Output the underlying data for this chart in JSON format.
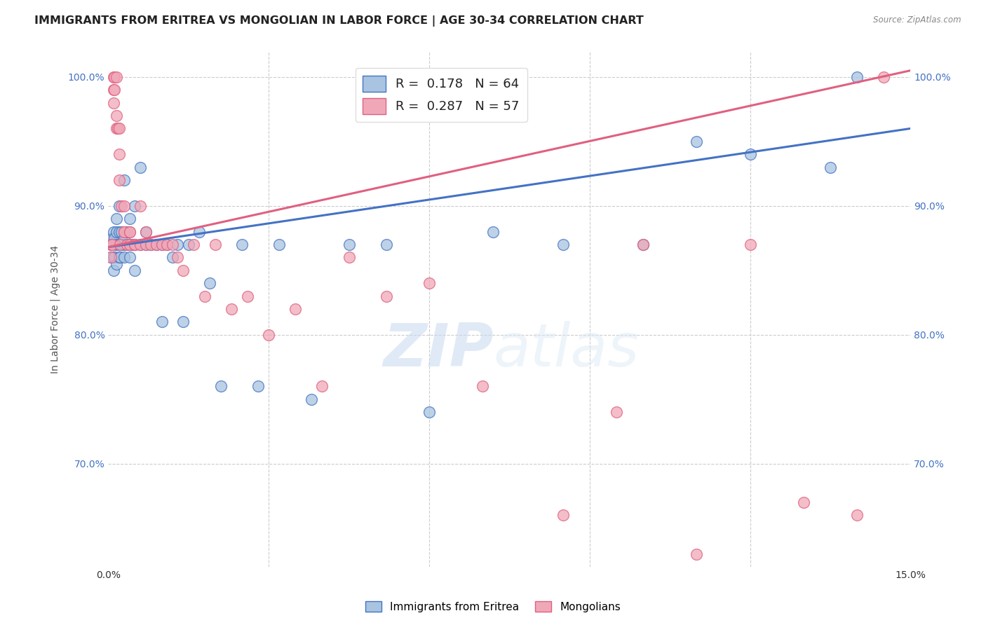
{
  "title": "IMMIGRANTS FROM ERITREA VS MONGOLIAN IN LABOR FORCE | AGE 30-34 CORRELATION CHART",
  "source": "Source: ZipAtlas.com",
  "ylabel": "In Labor Force | Age 30-34",
  "xlim": [
    0.0,
    0.15
  ],
  "ylim": [
    0.62,
    1.02
  ],
  "yticks": [
    0.7,
    0.8,
    0.9,
    1.0
  ],
  "yticklabels": [
    "70.0%",
    "80.0%",
    "90.0%",
    "100.0%"
  ],
  "blue_R": 0.178,
  "blue_N": 64,
  "pink_R": 0.287,
  "pink_N": 57,
  "blue_color": "#a8c4e0",
  "pink_color": "#f0a8b8",
  "blue_line_color": "#4472c4",
  "pink_line_color": "#e06080",
  "legend_label_blue": "Immigrants from Eritrea",
  "legend_label_pink": "Mongolians",
  "watermark_zip": "ZIP",
  "watermark_atlas": "atlas",
  "title_fontsize": 11.5,
  "axis_label_fontsize": 10,
  "tick_fontsize": 10,
  "blue_trend_x": [
    0.0,
    0.15
  ],
  "blue_trend_y": [
    0.868,
    0.96
  ],
  "pink_trend_x": [
    0.0,
    0.15
  ],
  "pink_trend_y": [
    0.868,
    1.005
  ],
  "blue_x": [
    0.0005,
    0.0005,
    0.0008,
    0.001,
    0.001,
    0.001,
    0.001,
    0.0012,
    0.0012,
    0.0015,
    0.0015,
    0.0015,
    0.0015,
    0.002,
    0.002,
    0.002,
    0.002,
    0.002,
    0.0022,
    0.0025,
    0.0025,
    0.003,
    0.003,
    0.003,
    0.003,
    0.0035,
    0.0035,
    0.004,
    0.004,
    0.004,
    0.0045,
    0.005,
    0.005,
    0.005,
    0.006,
    0.006,
    0.007,
    0.007,
    0.008,
    0.009,
    0.01,
    0.01,
    0.011,
    0.012,
    0.013,
    0.014,
    0.015,
    0.017,
    0.019,
    0.021,
    0.025,
    0.028,
    0.032,
    0.038,
    0.045,
    0.052,
    0.06,
    0.072,
    0.085,
    0.1,
    0.11,
    0.12,
    0.135,
    0.14
  ],
  "blue_y": [
    0.87,
    0.86,
    0.875,
    0.88,
    0.85,
    0.86,
    0.87,
    0.875,
    0.86,
    0.89,
    0.87,
    0.855,
    0.88,
    0.9,
    0.87,
    0.86,
    0.88,
    0.87,
    0.86,
    0.87,
    0.88,
    0.92,
    0.87,
    0.86,
    0.875,
    0.88,
    0.87,
    0.89,
    0.87,
    0.86,
    0.87,
    0.9,
    0.87,
    0.85,
    0.93,
    0.87,
    0.87,
    0.88,
    0.87,
    0.87,
    0.87,
    0.81,
    0.87,
    0.86,
    0.87,
    0.81,
    0.87,
    0.88,
    0.84,
    0.76,
    0.87,
    0.76,
    0.87,
    0.75,
    0.87,
    0.87,
    0.74,
    0.88,
    0.87,
    0.87,
    0.95,
    0.94,
    0.93,
    1.0
  ],
  "pink_x": [
    0.0005,
    0.0005,
    0.0008,
    0.001,
    0.001,
    0.001,
    0.0012,
    0.0012,
    0.0015,
    0.0015,
    0.0015,
    0.0018,
    0.002,
    0.002,
    0.002,
    0.0022,
    0.0025,
    0.003,
    0.003,
    0.003,
    0.0035,
    0.004,
    0.004,
    0.004,
    0.005,
    0.005,
    0.006,
    0.006,
    0.007,
    0.007,
    0.008,
    0.009,
    0.01,
    0.011,
    0.012,
    0.013,
    0.014,
    0.016,
    0.018,
    0.02,
    0.023,
    0.026,
    0.03,
    0.035,
    0.04,
    0.045,
    0.052,
    0.06,
    0.07,
    0.085,
    0.095,
    0.1,
    0.11,
    0.12,
    0.13,
    0.14,
    0.145
  ],
  "pink_y": [
    0.87,
    0.86,
    0.87,
    1.0,
    0.99,
    0.98,
    1.0,
    0.99,
    1.0,
    0.97,
    0.96,
    0.96,
    0.96,
    0.94,
    0.92,
    0.87,
    0.9,
    0.9,
    0.88,
    0.88,
    0.87,
    0.87,
    0.88,
    0.88,
    0.87,
    0.87,
    0.9,
    0.87,
    0.87,
    0.88,
    0.87,
    0.87,
    0.87,
    0.87,
    0.87,
    0.86,
    0.85,
    0.87,
    0.83,
    0.87,
    0.82,
    0.83,
    0.8,
    0.82,
    0.76,
    0.86,
    0.83,
    0.84,
    0.76,
    0.66,
    0.74,
    0.87,
    0.63,
    0.87,
    0.67,
    0.66,
    1.0
  ]
}
